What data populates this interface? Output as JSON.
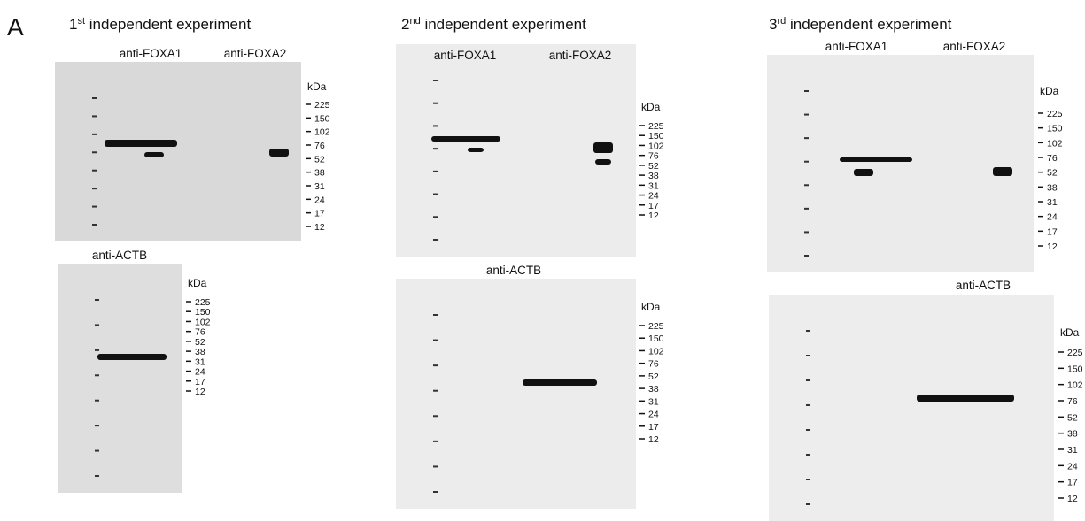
{
  "panel_label": "A",
  "kda_label": "kDa",
  "markers": [
    225,
    150,
    102,
    76,
    52,
    38,
    31,
    24,
    17,
    12
  ],
  "experiments": [
    {
      "ordinal": "1",
      "suffix": "st",
      "title": " independent experiment",
      "foxa_labels": [
        "anti-FOXA1",
        "anti-FOXA2"
      ],
      "actb_label": "anti-ACTB"
    },
    {
      "ordinal": "2",
      "suffix": "nd",
      "title": " independent experiment",
      "foxa_labels": [
        "anti-FOXA1",
        "anti-FOXA2"
      ],
      "actb_label": "anti-ACTB"
    },
    {
      "ordinal": "3",
      "suffix": "rd",
      "title": " independent experiment",
      "foxa_labels": [
        "anti-FOXA1",
        "anti-FOXA2"
      ],
      "actb_label": "anti-ACTB"
    }
  ]
}
